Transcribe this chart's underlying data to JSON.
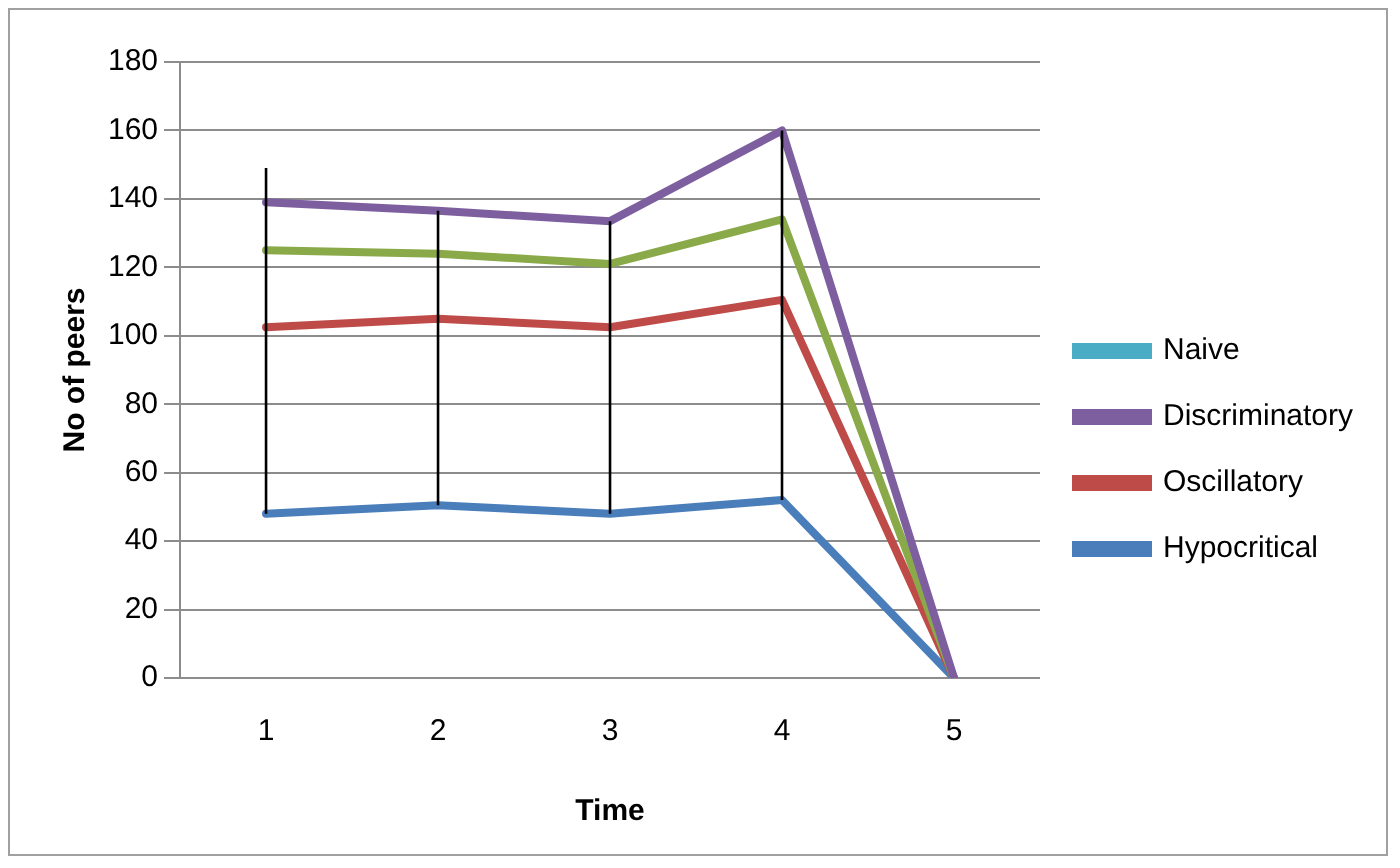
{
  "chart_data": {
    "type": "line",
    "xlabel": "Time",
    "ylabel": "No of peers",
    "categories": [
      "1",
      "2",
      "3",
      "4",
      "5"
    ],
    "series": [
      {
        "name": "Naive",
        "color": "#4bacc6",
        "values": [
          null,
          null,
          null,
          null,
          null
        ]
      },
      {
        "name": "Discriminatory",
        "color": "#7d5fa0",
        "values": [
          139,
          136.5,
          133.5,
          160,
          0
        ]
      },
      {
        "color": "#8aaa4a",
        "values": [
          125,
          124,
          121,
          134,
          0
        ]
      },
      {
        "name": "Oscillatory",
        "color": "#be4b48",
        "values": [
          102.5,
          105,
          102.5,
          110.5,
          0
        ]
      },
      {
        "name": "Hypocritical",
        "color": "#4a7ebb",
        "values": [
          48,
          50.5,
          48,
          52,
          0
        ],
        "errors": [
          [
            48,
            149
          ],
          [
            50.5,
            136.5
          ],
          [
            48,
            133.5
          ],
          [
            52,
            160
          ],
          null
        ]
      }
    ],
    "ylim": [
      0,
      180
    ],
    "yticks": [
      0,
      20,
      40,
      60,
      80,
      100,
      120,
      140,
      160,
      180
    ],
    "grid": "y",
    "legend": "right",
    "marker": "none",
    "line_style": "solid"
  }
}
